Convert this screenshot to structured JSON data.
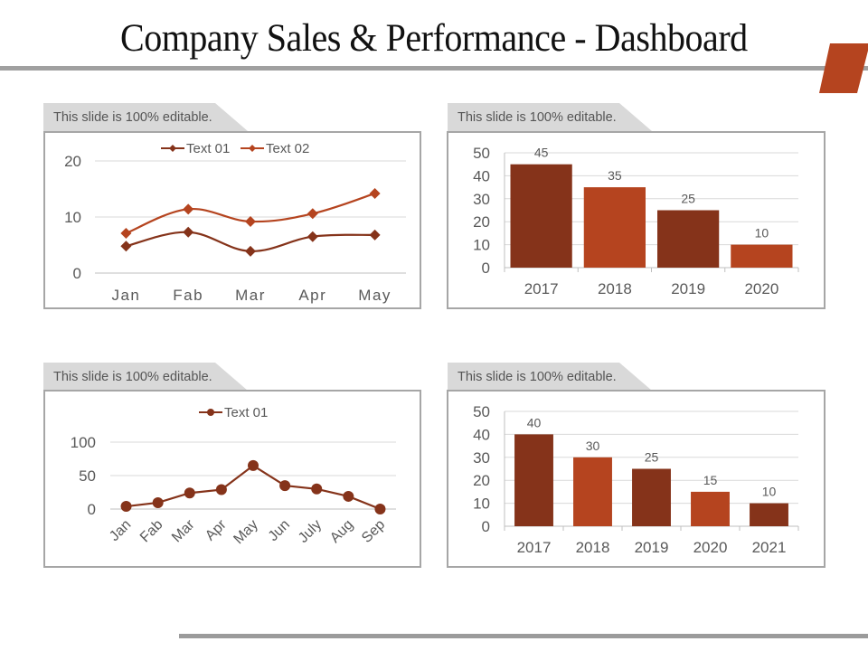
{
  "slide": {
    "title": "Company Sales & Performance - Dashboard",
    "accent_color": "#b5441f",
    "rule_color": "#a0a0a0"
  },
  "panels": [
    {
      "tab_label": "This slide is 100% editable."
    },
    {
      "tab_label": "This slide is 100% editable."
    },
    {
      "tab_label": "This slide is 100% editable."
    },
    {
      "tab_label": "This slide is 100% editable."
    }
  ],
  "colors": {
    "dark": "#85331a",
    "light": "#b5441f",
    "grid": "#d9d9d9",
    "axis": "#bfbfbf",
    "text": "#595959"
  },
  "chart_data": [
    {
      "type": "line",
      "title": "",
      "categories": [
        "Jan",
        "Fab",
        "Mar",
        "Apr",
        "May"
      ],
      "series": [
        {
          "name": "Text 01",
          "values": [
            4.8,
            7.3,
            3.9,
            6.5,
            6.8
          ],
          "color": "#85331a",
          "marker": "diamond"
        },
        {
          "name": "Text 02",
          "values": [
            7.1,
            11.4,
            9.2,
            10.6,
            14.2
          ],
          "color": "#b5441f",
          "marker": "diamond"
        }
      ],
      "yticks": [
        "0",
        "10",
        "20"
      ],
      "ylim": [
        0,
        20
      ],
      "legend": "top",
      "grid": true,
      "smooth": true
    },
    {
      "type": "bar",
      "title": "",
      "categories": [
        "2017",
        "2018",
        "2019",
        "2020"
      ],
      "values": [
        45,
        35,
        25,
        10
      ],
      "labels": [
        "45",
        "35",
        "25",
        "10"
      ],
      "colors": [
        "#85331a",
        "#b5441f",
        "#85331a",
        "#b5441f"
      ],
      "yticks": [
        "0",
        "10",
        "20",
        "30",
        "40",
        "50"
      ],
      "ylim": [
        0,
        50
      ],
      "grid": true
    },
    {
      "type": "line",
      "title": "",
      "categories": [
        "Jan",
        "Fab",
        "Mar",
        "Apr",
        "May",
        "Jun",
        "July",
        "Aug",
        "Sep"
      ],
      "series": [
        {
          "name": "Text 01",
          "values": [
            4,
            9.5,
            24,
            29,
            65,
            35,
            30,
            19,
            0
          ],
          "color": "#85331a",
          "marker": "circle"
        }
      ],
      "yticks": [
        "0",
        "50",
        "100"
      ],
      "ylim": [
        0,
        100
      ],
      "legend": "top",
      "grid": true,
      "rotated_labels": true
    },
    {
      "type": "bar",
      "title": "",
      "categories": [
        "2017",
        "2018",
        "2019",
        "2020",
        "2021"
      ],
      "values": [
        40,
        30,
        25,
        15,
        10
      ],
      "labels": [
        "40",
        "30",
        "25",
        "15",
        "10"
      ],
      "colors": [
        "#85331a",
        "#b5441f",
        "#85331a",
        "#b5441f",
        "#85331a"
      ],
      "yticks": [
        "0",
        "10",
        "20",
        "30",
        "40",
        "50"
      ],
      "ylim": [
        0,
        50
      ],
      "grid": true
    }
  ]
}
